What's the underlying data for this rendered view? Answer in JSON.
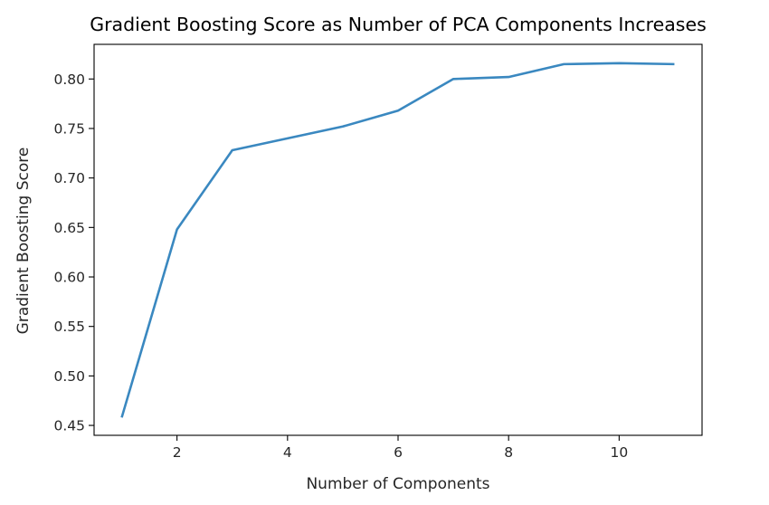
{
  "chart_data": {
    "type": "line",
    "title": "Gradient Boosting Score as Number of PCA Components Increases",
    "xlabel": "Number of Components",
    "ylabel": "Gradient Boosting Score",
    "xlim": [
      0.5,
      11.5
    ],
    "ylim": [
      0.44,
      0.835
    ],
    "x_ticks": [
      2,
      4,
      6,
      8,
      10
    ],
    "x_tick_labels": [
      "2",
      "4",
      "6",
      "8",
      "10"
    ],
    "y_ticks": [
      0.45,
      0.5,
      0.55,
      0.6,
      0.65,
      0.7,
      0.75,
      0.8
    ],
    "y_tick_labels": [
      "0.45",
      "0.50",
      "0.55",
      "0.60",
      "0.65",
      "0.70",
      "0.75",
      "0.80"
    ],
    "grid": false,
    "line_color": "#3a88c0",
    "series": [
      {
        "x": [
          1,
          2,
          3,
          4,
          5,
          6,
          7,
          8,
          9,
          10,
          11
        ],
        "values": [
          0.458,
          0.648,
          0.728,
          0.74,
          0.752,
          0.768,
          0.8,
          0.802,
          0.815,
          0.816,
          0.815
        ]
      }
    ]
  }
}
